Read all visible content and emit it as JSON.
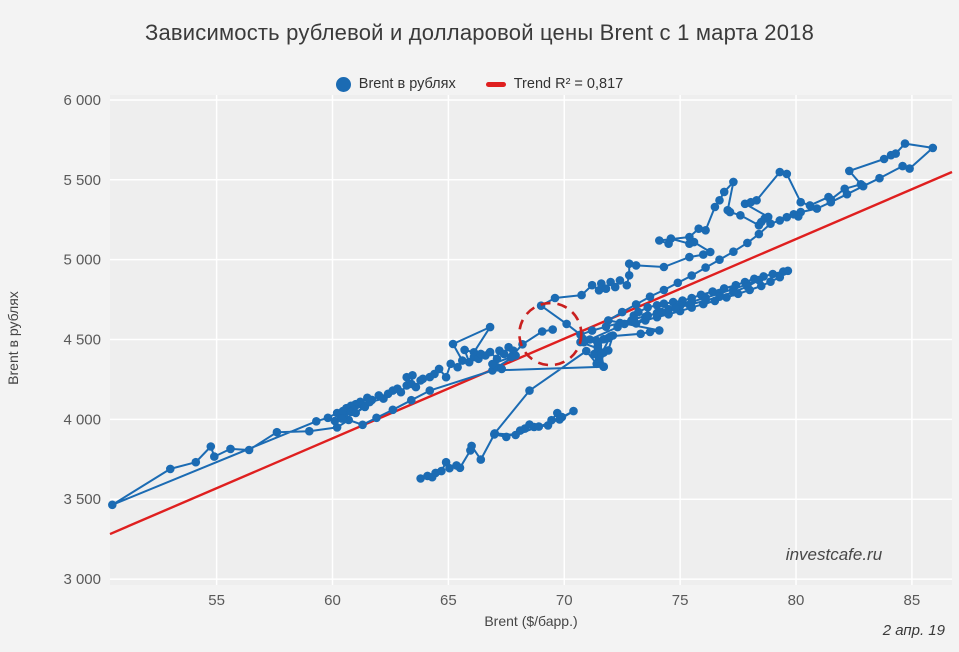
{
  "title": "Зависимость рублевой и долларовой цены Brent с 1 марта 2018",
  "legend": {
    "series": {
      "label": "Brent в рублях",
      "marker": "circle-icon"
    },
    "trend": {
      "label": "Trend R² = 0,817",
      "marker": "dash-icon"
    }
  },
  "watermark": "investcafe.ru",
  "date_label": "2 апр. 19",
  "colors": {
    "series_blue": "#1b6bb3",
    "trend_red": "#df1f1f",
    "annotation_red": "#c9201f",
    "plot_background": "#eeeeee",
    "page_background": "#f3f3f3",
    "gridline": "#ffffff"
  },
  "chart_data": {
    "type": "scatter",
    "connected": true,
    "title": "Зависимость рублевой и долларовой цены Brent с 1 марта 2018",
    "xlabel": "Brent ($/барр.)",
    "ylabel": "Brent в рублях",
    "x_axis": {
      "ticks": [
        55,
        60,
        65,
        70,
        75,
        80,
        85
      ],
      "range": [
        50.4,
        86.73
      ],
      "grid": true
    },
    "y_axis": {
      "ticks": [
        3000,
        3500,
        4000,
        4500,
        5000,
        5500,
        6000
      ],
      "tick_labels": [
        "3 000",
        "3 500",
        "4 000",
        "4 500",
        "5 000",
        "5 500",
        "6 000"
      ],
      "range": [
        2963,
        6031
      ],
      "grid": true
    },
    "series_name": "Brent в рублях",
    "trend": {
      "label": "Trend R² = 0,817",
      "r2": 0.817,
      "x1": 50.4,
      "y1": 3282,
      "x2": 86.73,
      "y2": 5549
    },
    "annotation_circle": {
      "x": 69.4,
      "y": 4534,
      "radius_px": 31
    },
    "points": [
      [
        63.8,
        3630
      ],
      [
        64.1,
        3646
      ],
      [
        64.45,
        3665
      ],
      [
        64.3,
        3638
      ],
      [
        64.7,
        3676
      ],
      [
        64.9,
        3732
      ],
      [
        65.05,
        3694
      ],
      [
        65.35,
        3712
      ],
      [
        65.5,
        3697
      ],
      [
        65.95,
        3806
      ],
      [
        66.0,
        3834
      ],
      [
        66.4,
        3748
      ],
      [
        66.98,
        3906
      ],
      [
        67.5,
        3890
      ],
      [
        68.1,
        3930
      ],
      [
        68.3,
        3942
      ],
      [
        68.5,
        3968
      ],
      [
        68.7,
        3952
      ],
      [
        69.3,
        3962
      ],
      [
        69.45,
        3995
      ],
      [
        69.7,
        4040
      ],
      [
        69.9,
        4014
      ],
      [
        70.4,
        4052
      ],
      [
        69.8,
        4000
      ],
      [
        68.9,
        3955
      ],
      [
        67.9,
        3902
      ],
      [
        67.0,
        3912
      ],
      [
        68.5,
        4180
      ],
      [
        70.95,
        4428
      ],
      [
        71.4,
        4348
      ],
      [
        71.7,
        4330
      ],
      [
        71.5,
        4382
      ],
      [
        71.3,
        4410
      ],
      [
        71.7,
        4418
      ],
      [
        71.9,
        4432
      ],
      [
        72.1,
        4525
      ],
      [
        71.7,
        4502
      ],
      [
        71.9,
        4510
      ],
      [
        71.45,
        4462
      ],
      [
        71.1,
        4500
      ],
      [
        70.8,
        4505
      ],
      [
        70.7,
        4484
      ],
      [
        71.45,
        4444
      ],
      [
        71.4,
        4492
      ],
      [
        70.85,
        4483
      ],
      [
        72.3,
        4578
      ],
      [
        72.6,
        4598
      ],
      [
        72.9,
        4620
      ],
      [
        73.0,
        4650
      ],
      [
        73.2,
        4672
      ],
      [
        73.6,
        4702
      ],
      [
        74.0,
        4714
      ],
      [
        74.3,
        4724
      ],
      [
        74.7,
        4734
      ],
      [
        75.1,
        4744
      ],
      [
        75.5,
        4760
      ],
      [
        75.9,
        4780
      ],
      [
        76.4,
        4800
      ],
      [
        76.9,
        4820
      ],
      [
        77.4,
        4840
      ],
      [
        77.8,
        4860
      ],
      [
        78.2,
        4880
      ],
      [
        78.6,
        4895
      ],
      [
        79.0,
        4910
      ],
      [
        79.45,
        4925
      ],
      [
        79.65,
        4930
      ],
      [
        79.3,
        4890
      ],
      [
        78.9,
        4862
      ],
      [
        78.5,
        4835
      ],
      [
        78.0,
        4810
      ],
      [
        77.5,
        4786
      ],
      [
        77.0,
        4764
      ],
      [
        76.5,
        4742
      ],
      [
        76.0,
        4722
      ],
      [
        75.5,
        4700
      ],
      [
        75.0,
        4678
      ],
      [
        74.5,
        4658
      ],
      [
        74.0,
        4640
      ],
      [
        73.5,
        4620
      ],
      [
        73.1,
        4600
      ],
      [
        73.5,
        4642
      ],
      [
        74.0,
        4666
      ],
      [
        74.5,
        4690
      ],
      [
        75.0,
        4712
      ],
      [
        75.5,
        4736
      ],
      [
        76.1,
        4762
      ],
      [
        76.7,
        4788
      ],
      [
        77.3,
        4816
      ],
      [
        77.9,
        4846
      ],
      [
        78.4,
        4872
      ],
      [
        77.9,
        4832
      ],
      [
        77.3,
        4796
      ],
      [
        76.7,
        4768
      ],
      [
        76.1,
        4744
      ],
      [
        75.4,
        4718
      ],
      [
        74.8,
        4696
      ],
      [
        74.2,
        4672
      ],
      [
        73.6,
        4650
      ],
      [
        73.0,
        4628
      ],
      [
        72.4,
        4604
      ],
      [
        71.8,
        4580
      ],
      [
        71.2,
        4556
      ],
      [
        70.7,
        4530
      ],
      [
        70.1,
        4598
      ],
      [
        69.0,
        4712
      ],
      [
        69.6,
        4760
      ],
      [
        70.75,
        4778
      ],
      [
        71.2,
        4840
      ],
      [
        71.5,
        4808
      ],
      [
        71.6,
        4850
      ],
      [
        71.8,
        4818
      ],
      [
        72.0,
        4860
      ],
      [
        72.2,
        4828
      ],
      [
        72.4,
        4870
      ],
      [
        72.7,
        4840
      ],
      [
        72.8,
        4902
      ],
      [
        72.8,
        4975
      ],
      [
        73.1,
        4964
      ],
      [
        74.3,
        4954
      ],
      [
        75.4,
        5016
      ],
      [
        76.0,
        5032
      ],
      [
        76.3,
        5048
      ],
      [
        75.6,
        5110
      ],
      [
        75.4,
        5100
      ],
      [
        74.6,
        5132
      ],
      [
        74.5,
        5100
      ],
      [
        74.1,
        5120
      ],
      [
        75.4,
        5142
      ],
      [
        75.8,
        5194
      ],
      [
        76.1,
        5184
      ],
      [
        76.5,
        5330
      ],
      [
        76.7,
        5372
      ],
      [
        76.9,
        5424
      ],
      [
        77.3,
        5487
      ],
      [
        77.05,
        5310
      ],
      [
        77.15,
        5298
      ],
      [
        77.6,
        5278
      ],
      [
        78.4,
        5215
      ],
      [
        78.5,
        5236
      ],
      [
        78.65,
        5257
      ],
      [
        78.8,
        5268
      ],
      [
        77.8,
        5350
      ],
      [
        78.05,
        5360
      ],
      [
        78.3,
        5372
      ],
      [
        79.3,
        5548
      ],
      [
        79.6,
        5537
      ],
      [
        80.2,
        5360
      ],
      [
        80.6,
        5340
      ],
      [
        81.4,
        5392
      ],
      [
        81.5,
        5376
      ],
      [
        82.1,
        5444
      ],
      [
        82.8,
        5472
      ],
      [
        82.3,
        5556
      ],
      [
        83.8,
        5630
      ],
      [
        84.1,
        5654
      ],
      [
        84.3,
        5664
      ],
      [
        84.7,
        5727
      ],
      [
        85.9,
        5700
      ],
      [
        84.9,
        5570
      ],
      [
        84.6,
        5586
      ],
      [
        83.6,
        5510
      ],
      [
        82.9,
        5460
      ],
      [
        82.2,
        5410
      ],
      [
        81.5,
        5360
      ],
      [
        80.9,
        5320
      ],
      [
        80.2,
        5298
      ],
      [
        80.1,
        5270
      ],
      [
        79.9,
        5284
      ],
      [
        79.6,
        5266
      ],
      [
        79.3,
        5246
      ],
      [
        78.9,
        5225
      ],
      [
        78.4,
        5160
      ],
      [
        77.9,
        5105
      ],
      [
        77.3,
        5050
      ],
      [
        76.7,
        5000
      ],
      [
        76.1,
        4950
      ],
      [
        75.5,
        4900
      ],
      [
        74.9,
        4855
      ],
      [
        74.3,
        4810
      ],
      [
        73.7,
        4768
      ],
      [
        73.1,
        4720
      ],
      [
        72.5,
        4672
      ],
      [
        71.9,
        4620
      ],
      [
        74.1,
        4557
      ],
      [
        73.7,
        4547
      ],
      [
        73.3,
        4536
      ],
      [
        72.0,
        4520
      ],
      [
        71.6,
        4410
      ],
      [
        71.7,
        4330
      ],
      [
        66.9,
        4306
      ],
      [
        64.2,
        4180
      ],
      [
        63.4,
        4120
      ],
      [
        62.6,
        4060
      ],
      [
        61.9,
        4010
      ],
      [
        61.3,
        3966
      ],
      [
        60.7,
        3996
      ],
      [
        60.2,
        3950
      ],
      [
        59.0,
        3926
      ],
      [
        57.6,
        3920
      ],
      [
        56.4,
        3808
      ],
      [
        55.6,
        3815
      ],
      [
        54.9,
        3767
      ],
      [
        54.75,
        3830
      ],
      [
        54.1,
        3732
      ],
      [
        53.0,
        3690
      ],
      [
        50.5,
        3465
      ],
      [
        59.3,
        3988
      ],
      [
        59.8,
        4010
      ],
      [
        60.2,
        4040
      ],
      [
        60.6,
        4070
      ],
      [
        61.0,
        4095
      ],
      [
        60.5,
        4028
      ],
      [
        60.1,
        3990
      ],
      [
        60.45,
        4052
      ],
      [
        60.8,
        4085
      ],
      [
        61.2,
        4110
      ],
      [
        61.5,
        4135
      ],
      [
        60.9,
        4060
      ],
      [
        60.4,
        4005
      ],
      [
        60.8,
        4046
      ],
      [
        61.3,
        4090
      ],
      [
        61.7,
        4122
      ],
      [
        62.0,
        4150
      ],
      [
        61.4,
        4078
      ],
      [
        61.0,
        4040
      ],
      [
        61.6,
        4108
      ],
      [
        62.2,
        4130
      ],
      [
        62.4,
        4160
      ],
      [
        62.6,
        4180
      ],
      [
        62.8,
        4192
      ],
      [
        62.95,
        4170
      ],
      [
        63.2,
        4212
      ],
      [
        63.2,
        4264
      ],
      [
        63.45,
        4276
      ],
      [
        63.4,
        4222
      ],
      [
        63.6,
        4202
      ],
      [
        63.8,
        4244
      ],
      [
        63.9,
        4254
      ],
      [
        64.2,
        4265
      ],
      [
        64.4,
        4285
      ],
      [
        64.6,
        4316
      ],
      [
        64.9,
        4264
      ],
      [
        65.1,
        4348
      ],
      [
        65.4,
        4327
      ],
      [
        65.6,
        4368
      ],
      [
        65.2,
        4472
      ],
      [
        66.8,
        4578
      ],
      [
        66.1,
        4420
      ],
      [
        65.7,
        4435
      ],
      [
        65.9,
        4358
      ],
      [
        66.1,
        4390
      ],
      [
        66.3,
        4379
      ],
      [
        66.4,
        4410
      ],
      [
        66.6,
        4400
      ],
      [
        66.8,
        4421
      ],
      [
        67.1,
        4379
      ],
      [
        67.2,
        4430
      ],
      [
        67.4,
        4410
      ],
      [
        67.6,
        4452
      ],
      [
        67.8,
        4430
      ],
      [
        67.9,
        4400
      ],
      [
        67.1,
        4327
      ],
      [
        67.3,
        4316
      ],
      [
        66.9,
        4347
      ],
      [
        67.7,
        4390
      ],
      [
        68.2,
        4470
      ],
      [
        69.05,
        4550
      ],
      [
        69.5,
        4562
      ]
    ]
  }
}
